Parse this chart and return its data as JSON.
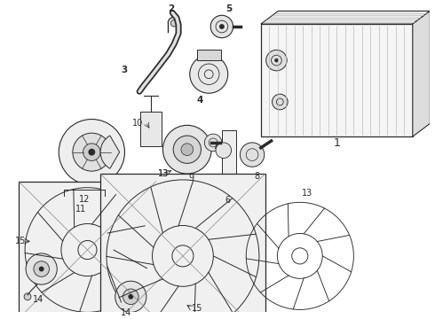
{
  "bg_color": "#ffffff",
  "line_color": "#2a2a2a",
  "figsize": [
    4.9,
    3.6
  ],
  "dpi": 100,
  "gray": "#888888",
  "lgray": "#bbbbbb"
}
